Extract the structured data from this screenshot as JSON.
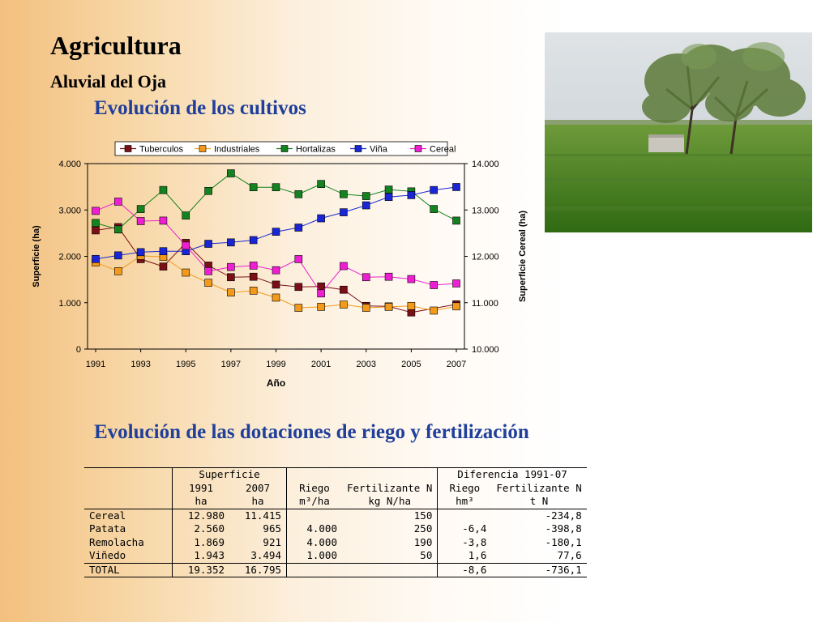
{
  "slide": {
    "title": "Agricultura",
    "subtitle": "Aluvial del Oja",
    "section1": "Evolución de los cultivos",
    "section2": "Evolución de las dotaciones de riego y fertilización"
  },
  "colors": {
    "heading": "#1f3f9a",
    "tuberculos": "#7b0f16",
    "industriales": "#f39a1a",
    "hortalizas": "#14821f",
    "vina": "#1a26d6",
    "cereal": "#ee1fd2"
  },
  "chart_data": {
    "type": "line",
    "title": "",
    "xlabel": "Año",
    "ylabel": "Superficie (ha)",
    "y2label": "Superficie Cereal (ha)",
    "ylim": [
      0,
      4000
    ],
    "y2lim": [
      10000,
      14000
    ],
    "yticks": [
      "0",
      "1.000",
      "2.000",
      "3.000",
      "4.000"
    ],
    "y2ticks": [
      "10.000",
      "11.000",
      "12.000",
      "13.000",
      "14.000"
    ],
    "xticks": [
      "1991",
      "1993",
      "1995",
      "1997",
      "1999",
      "2001",
      "2003",
      "2005",
      "2007"
    ],
    "x": [
      1991,
      1992,
      1993,
      1994,
      1995,
      1996,
      1997,
      1998,
      1999,
      2000,
      2001,
      2002,
      2003,
      2004,
      2005,
      2006,
      2007
    ],
    "legend_position": "top",
    "grid": false,
    "series": [
      {
        "name": "Tuberculos",
        "axis": "left",
        "color_key": "tuberculos",
        "values": [
          2560,
          2630,
          1940,
          1780,
          2290,
          1800,
          1550,
          1560,
          1390,
          1340,
          1350,
          1280,
          930,
          920,
          790,
          null,
          965
        ]
      },
      {
        "name": "Industriales",
        "axis": "left",
        "color_key": "industriales",
        "values": [
          1869,
          1680,
          2010,
          1990,
          1650,
          1430,
          1220,
          1260,
          1110,
          890,
          910,
          960,
          890,
          910,
          930,
          830,
          921
        ]
      },
      {
        "name": "Hortalizas",
        "axis": "left",
        "color_key": "hortalizas",
        "values": [
          2720,
          2580,
          3020,
          3430,
          2880,
          3410,
          3790,
          3490,
          3490,
          3340,
          3560,
          3340,
          3300,
          3440,
          3400,
          3020,
          2770
        ]
      },
      {
        "name": "Viña",
        "axis": "left",
        "color_key": "vina",
        "values": [
          1943,
          2020,
          2090,
          2110,
          2110,
          2270,
          2300,
          2350,
          2530,
          2620,
          2820,
          2950,
          3100,
          3280,
          3320,
          3430,
          3494
        ]
      },
      {
        "name": "Cereal",
        "axis": "right",
        "color_key": "cereal",
        "values": [
          12980,
          13180,
          12760,
          12770,
          12230,
          11680,
          11770,
          11800,
          11700,
          11940,
          11200,
          11790,
          11550,
          11560,
          11510,
          11380,
          11415
        ]
      }
    ]
  },
  "table": {
    "header_row1": {
      "superficie": "Superficie",
      "diferencia": "Diferencia 1991-07"
    },
    "header_row2": {
      "y1991": "1991",
      "y2007": "2007",
      "riego": "Riego",
      "fert": "Fertilizante N",
      "dif_riego": "Riego",
      "dif_fert": "Fertilizante N"
    },
    "header_row3": {
      "u1991": "ha",
      "u2007": "ha",
      "riego_unit": "m³/ha",
      "fert_unit": "kg N/ha",
      "dif_riego_unit": "hm³",
      "dif_fert_unit": "t N"
    },
    "rows": [
      {
        "name": "Cereal",
        "s1991": "12.980",
        "s2007": "11.415",
        "riego": "",
        "fert": "150",
        "dif_riego": "",
        "dif_fert": "-234,8"
      },
      {
        "name": "Patata",
        "s1991": "2.560",
        "s2007": "965",
        "riego": "4.000",
        "fert": "250",
        "dif_riego": "-6,4",
        "dif_fert": "-398,8"
      },
      {
        "name": "Remolacha",
        "s1991": "1.869",
        "s2007": "921",
        "riego": "4.000",
        "fert": "190",
        "dif_riego": "-3,8",
        "dif_fert": "-180,1"
      },
      {
        "name": "Viñedo",
        "s1991": "1.943",
        "s2007": "3.494",
        "riego": "1.000",
        "fert": "50",
        "dif_riego": "1,6",
        "dif_fert": "77,6"
      }
    ],
    "total": {
      "name": "TOTAL",
      "s1991": "19.352",
      "s2007": "16.795",
      "riego": "",
      "fert": "",
      "dif_riego": "-8,6",
      "dif_fert": "-736,1"
    }
  }
}
